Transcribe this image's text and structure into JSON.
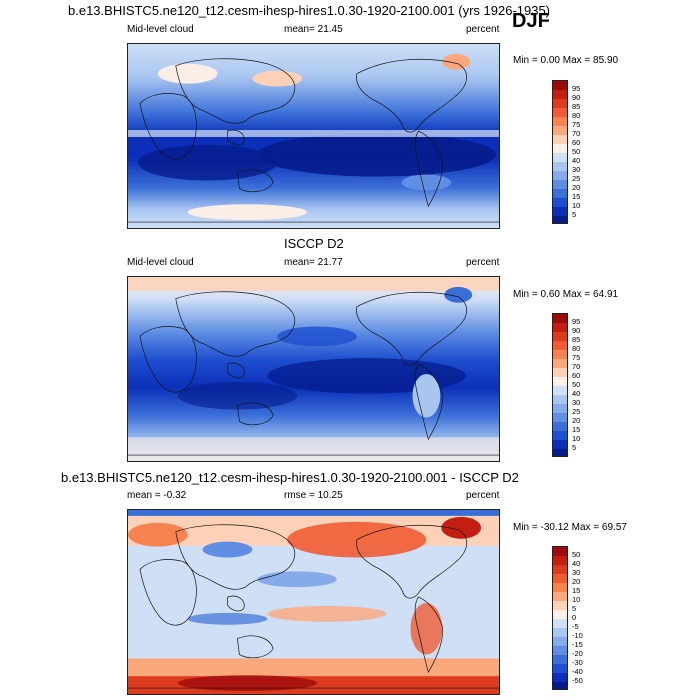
{
  "page": {
    "title": "b.e13.BHISTC5.ne120_t12.cesm-ihesp-hires1.0.30-1920-2100.001 (yrs 1926-1935)",
    "season": "DJF"
  },
  "panels": [
    {
      "title": "",
      "left_label": "Mid-level cloud",
      "center_label": "mean=  21.45",
      "right_label": "percent",
      "minmax": "Min =   0.00 Max =  85.90",
      "colorbar": {
        "labels": [
          "95",
          "90",
          "85",
          "80",
          "75",
          "70",
          "60",
          "50",
          "40",
          "30",
          "25",
          "20",
          "15",
          "10",
          "5"
        ],
        "colors": [
          "#9e0a0a",
          "#c31e12",
          "#dd3b1e",
          "#ef5c34",
          "#f6834f",
          "#fba77c",
          "#fdd1b7",
          "#fbeee6",
          "#cfdff6",
          "#a9c6f1",
          "#85abeb",
          "#5f8ee3",
          "#3a6fd8",
          "#1d4fcf",
          "#0b2fb8",
          "#061c8c"
        ]
      },
      "field_stats": {
        "mean": 21.45,
        "min": 0.0,
        "max": 85.9
      }
    },
    {
      "title": "ISCCP D2",
      "left_label": "Mid-level cloud",
      "center_label": "mean=  21.77",
      "right_label": "percent",
      "minmax": "Min =   0.60 Max =  64.91",
      "colorbar": {
        "labels": [
          "95",
          "90",
          "85",
          "80",
          "75",
          "70",
          "60",
          "50",
          "40",
          "30",
          "25",
          "20",
          "15",
          "10",
          "5"
        ],
        "colors": [
          "#9e0a0a",
          "#c31e12",
          "#dd3b1e",
          "#ef5c34",
          "#f6834f",
          "#fba77c",
          "#fdd1b7",
          "#fbeee6",
          "#cfdff6",
          "#a9c6f1",
          "#85abeb",
          "#5f8ee3",
          "#3a6fd8",
          "#1d4fcf",
          "#0b2fb8",
          "#061c8c"
        ]
      },
      "field_stats": {
        "mean": 21.77,
        "min": 0.6,
        "max": 64.91
      }
    },
    {
      "title": "b.e13.BHISTC5.ne120_t12.cesm-ihesp-hires1.0.30-1920-2100.001 - ISCCP D2",
      "left_label": "mean =  -0.32",
      "center_label": "rmse =  10.25",
      "right_label": "percent",
      "minmax": "Min = -30.12 Max =  69.57",
      "colorbar": {
        "labels": [
          "50",
          "40",
          "30",
          "20",
          "15",
          "10",
          "5",
          "0",
          "-5",
          "-10",
          "-15",
          "-20",
          "-30",
          "-40",
          "-50"
        ],
        "colors": [
          "#9e0a0a",
          "#c31e12",
          "#dd3b1e",
          "#ef5c34",
          "#f6834f",
          "#fba77c",
          "#fdd1b7",
          "#fbeee6",
          "#cfdff6",
          "#a9c6f1",
          "#85abeb",
          "#5f8ee3",
          "#3a6fd8",
          "#1d4fcf",
          "#0b2fb8",
          "#061c8c"
        ]
      },
      "field_stats": {
        "mean": -0.32,
        "rmse": 10.25,
        "min": -30.12,
        "max": 69.57
      }
    }
  ]
}
